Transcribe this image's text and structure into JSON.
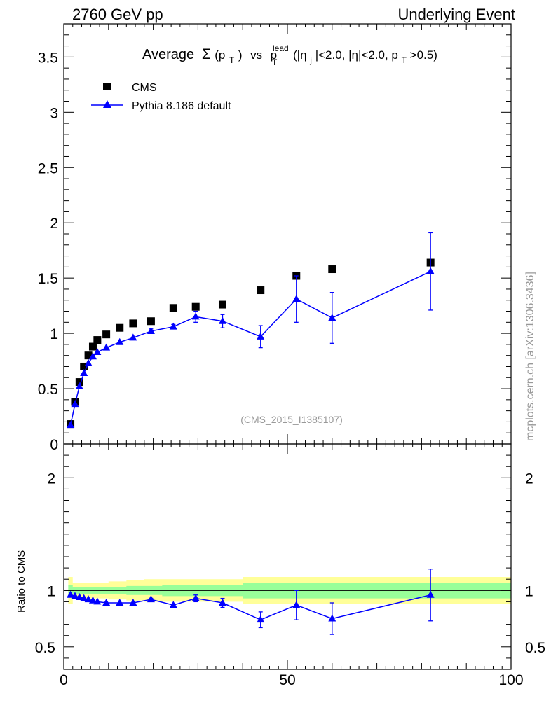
{
  "header": {
    "left": "2760 GeV pp",
    "right": "Underlying Event"
  },
  "side_label": "mcplots.cern.ch [arXiv:1306.3436]",
  "analysis_id": "(CMS_2015_I1385107)",
  "chart_data": [
    {
      "type": "scatter",
      "panel": "main",
      "title_parts": {
        "average": "Average",
        "sigma": "Σ",
        "pt_open": "(p",
        "T": "T",
        "pt_close": ")",
        "vs": "vs",
        "p": "p",
        "lead": "lead",
        "eta_j_open": "(|η",
        "j": "j",
        "eta_rest": "|<2.0, |η|<2.0, p",
        "pt_cut": ">0.5)"
      },
      "xlim": [
        0,
        100
      ],
      "ylim": [
        0,
        3.8
      ],
      "yticks": [
        0,
        0.5,
        1,
        1.5,
        2,
        2.5,
        3,
        3.5
      ],
      "ytick_labels": [
        "0",
        "0.5",
        "1",
        "1.5",
        "2",
        "2.5",
        "3",
        "3.5"
      ],
      "legend": {
        "placement": "top-left",
        "cms_label": "CMS",
        "mc_label": "Pythia 8.186 default"
      },
      "series": [
        {
          "name": "CMS",
          "marker": "square",
          "color": "#000000",
          "x": [
            1.5,
            2.5,
            3.5,
            4.5,
            5.5,
            6.5,
            7.5,
            9.5,
            12.5,
            15.5,
            19.5,
            24.5,
            29.5,
            35.5,
            44,
            52,
            60,
            82
          ],
          "y": [
            0.18,
            0.38,
            0.56,
            0.7,
            0.8,
            0.88,
            0.94,
            0.99,
            1.05,
            1.09,
            1.11,
            1.23,
            1.24,
            1.26,
            1.39,
            1.52,
            1.58,
            1.64
          ]
        },
        {
          "name": "Pythia 8.186 default",
          "marker": "triangle",
          "color": "#0000ff",
          "x": [
            1.5,
            2.5,
            3.5,
            4.5,
            5.5,
            6.5,
            7.5,
            9.5,
            12.5,
            15.5,
            19.5,
            24.5,
            29.5,
            35.5,
            44,
            52,
            60,
            82
          ],
          "y": [
            0.17,
            0.36,
            0.52,
            0.64,
            0.73,
            0.79,
            0.83,
            0.87,
            0.92,
            0.96,
            1.02,
            1.06,
            1.15,
            1.11,
            0.97,
            1.31,
            1.14,
            1.56
          ],
          "err": [
            0,
            0,
            0,
            0,
            0,
            0,
            0,
            0,
            0,
            0,
            0.02,
            0.02,
            0.05,
            0.06,
            0.1,
            0.21,
            0.23,
            0.35
          ]
        }
      ]
    },
    {
      "type": "scatter",
      "panel": "ratio",
      "ylabel": "Ratio to CMS",
      "xlim": [
        0,
        100
      ],
      "ylim": [
        0.3,
        2.3
      ],
      "xticks": [
        0,
        50,
        100
      ],
      "xtick_labels": [
        "0",
        "50",
        "100"
      ],
      "yticks": [
        0.5,
        1,
        2
      ],
      "ytick_labels": [
        "0.5",
        "1",
        "2"
      ],
      "bands": {
        "x": [
          1,
          2,
          3,
          4,
          5,
          6,
          7,
          8,
          10,
          11,
          14,
          17,
          18,
          22,
          27,
          32,
          40,
          48,
          56,
          64,
          100
        ],
        "yellow": [
          0.12,
          0.07,
          0.07,
          0.07,
          0.07,
          0.07,
          0.07,
          0.07,
          0.08,
          0.08,
          0.09,
          0.09,
          0.1,
          0.1,
          0.1,
          0.1,
          0.12,
          0.12,
          0.12,
          0.12,
          0.12
        ],
        "green": [
          0.05,
          0.03,
          0.03,
          0.03,
          0.03,
          0.03,
          0.03,
          0.03,
          0.03,
          0.03,
          0.04,
          0.04,
          0.04,
          0.05,
          0.05,
          0.05,
          0.07,
          0.07,
          0.07,
          0.07,
          0.07
        ]
      },
      "series": [
        {
          "name": "Pythia 8.186 default",
          "marker": "triangle",
          "color": "#0000ff",
          "x": [
            1.5,
            2.5,
            3.5,
            4.5,
            5.5,
            6.5,
            7.5,
            9.5,
            12.5,
            15.5,
            19.5,
            24.5,
            29.5,
            35.5,
            44,
            52,
            60,
            82
          ],
          "y": [
            0.96,
            0.95,
            0.94,
            0.93,
            0.92,
            0.91,
            0.9,
            0.89,
            0.89,
            0.89,
            0.92,
            0.87,
            0.93,
            0.89,
            0.74,
            0.87,
            0.75,
            0.96
          ],
          "err": [
            0,
            0,
            0,
            0,
            0,
            0,
            0,
            0,
            0,
            0,
            0.01,
            0.01,
            0.03,
            0.04,
            0.07,
            0.13,
            0.14,
            0.23
          ]
        }
      ]
    }
  ]
}
